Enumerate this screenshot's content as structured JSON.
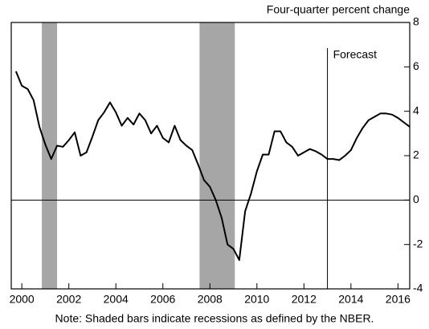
{
  "chart_data": {
    "type": "line",
    "title": "Four-quarter percent change",
    "note": "Note: Shaded bars indicate recessions as defined by the NBER.",
    "forecast_label": "Forecast",
    "forecast_start": 2013.0,
    "recessions": [
      [
        2000.85,
        2001.5
      ],
      [
        2007.56,
        2009.06
      ]
    ],
    "hline": 0,
    "x": [
      1999.75,
      2000,
      2000.25,
      2000.5,
      2000.75,
      2001,
      2001.25,
      2001.5,
      2001.75,
      2002,
      2002.25,
      2002.5,
      2002.75,
      2003,
      2003.25,
      2003.5,
      2003.75,
      2004,
      2004.25,
      2004.5,
      2004.75,
      2005,
      2005.25,
      2005.5,
      2005.75,
      2006,
      2006.25,
      2006.5,
      2006.75,
      2007,
      2007.25,
      2007.5,
      2007.75,
      2008,
      2008.25,
      2008.5,
      2008.75,
      2009,
      2009.25,
      2009.5,
      2009.75,
      2010,
      2010.25,
      2010.5,
      2010.75,
      2011,
      2011.25,
      2011.5,
      2011.75,
      2012,
      2012.25,
      2012.5,
      2012.75,
      2013,
      2013.25,
      2013.5,
      2013.75,
      2014,
      2014.25,
      2014.5,
      2014.75,
      2015,
      2015.25,
      2015.5,
      2015.75,
      2016,
      2016.25,
      2016.5
    ],
    "series": [
      {
        "color": "#000000",
        "values": [
          5.8,
          5.15,
          5.0,
          4.5,
          3.3,
          2.5,
          1.85,
          2.45,
          2.4,
          2.7,
          3.05,
          2.0,
          2.15,
          2.85,
          3.6,
          3.95,
          4.4,
          3.95,
          3.35,
          3.7,
          3.4,
          3.9,
          3.6,
          3.0,
          3.35,
          2.8,
          2.6,
          3.35,
          2.7,
          2.45,
          2.25,
          1.6,
          0.9,
          0.6,
          0.0,
          -0.8,
          -2.0,
          -2.2,
          -2.7,
          -0.5,
          0.3,
          1.3,
          2.05,
          2.05,
          3.1,
          3.1,
          2.6,
          2.4,
          2.0,
          2.15,
          2.3,
          2.2,
          2.05,
          1.85,
          1.85,
          1.8,
          2.0,
          2.25,
          2.8,
          3.25,
          3.6,
          3.75,
          3.9,
          3.9,
          3.85,
          3.7,
          3.5,
          3.3
        ]
      }
    ],
    "xlim": [
      1999.55,
      2016.5
    ],
    "xticks": [
      2000,
      2002,
      2004,
      2006,
      2008,
      2010,
      2012,
      2014,
      2016
    ],
    "ylim": [
      -4,
      8
    ],
    "yticks": [
      -4,
      -2,
      0,
      2,
      4,
      6,
      8
    ]
  }
}
